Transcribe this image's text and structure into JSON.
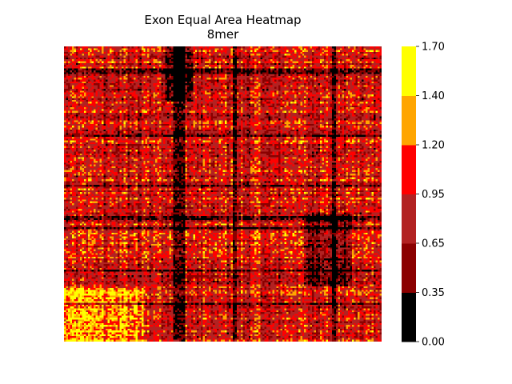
{
  "chart_data": {
    "type": "heatmap",
    "title": "Exon Equal Area Heatmap",
    "subtitle": "8mer",
    "xlabel": "",
    "ylabel": "",
    "x_tick_labels": [],
    "y_tick_labels": [],
    "grid": false,
    "value_range": [
      0.0,
      1.7
    ],
    "matrix_size": [
      160,
      160
    ],
    "colorbar": {
      "placement": "right",
      "boundaries": [
        0.0,
        0.35,
        0.65,
        0.95,
        1.2,
        1.4,
        1.7
      ],
      "tick_labels": [
        "0.00",
        "0.35",
        "0.65",
        "0.95",
        "1.20",
        "1.40",
        "1.70"
      ],
      "colors": [
        "#000000",
        "#8b0000",
        "#b22222",
        "#ff0000",
        "#ffa500",
        "#ffff00"
      ]
    }
  }
}
